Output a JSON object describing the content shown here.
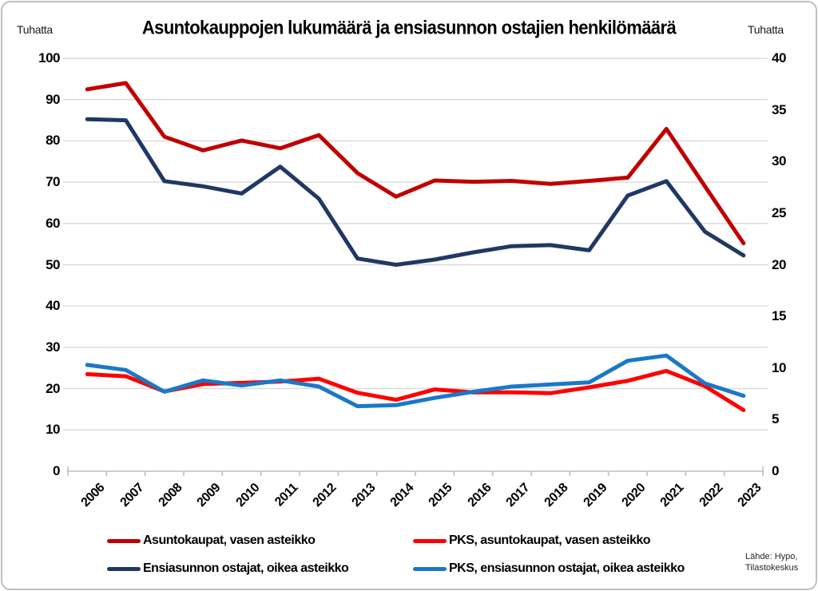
{
  "chart_data": {
    "type": "line",
    "title": "Asuntokauppojen lukumäärä ja ensiasunnon ostajien henkilömäärä",
    "categories": [
      "2006",
      "2007",
      "2008",
      "2009",
      "2010",
      "2011",
      "2012",
      "2013",
      "2014",
      "2015",
      "2016",
      "2017",
      "2018",
      "2019",
      "2020",
      "2021",
      "2022",
      "2023"
    ],
    "left_axis": {
      "label": "Tuhatta",
      "min": 0,
      "max": 100,
      "ticks": [
        100,
        90,
        80,
        70,
        60,
        50,
        40,
        30,
        20,
        10,
        0
      ]
    },
    "right_axis": {
      "label": "Tuhatta",
      "min": 0,
      "max": 40,
      "ticks": [
        40,
        35,
        30,
        25,
        20,
        15,
        10,
        5,
        0
      ]
    },
    "grid": "horizontal",
    "legend_position": "bottom",
    "series": [
      {
        "name": "Asuntokaupat, vasen asteikko",
        "axis": "left",
        "color": "#C00000",
        "values": [
          92.5,
          94.0,
          81.0,
          77.7,
          80.1,
          78.2,
          81.4,
          72.2,
          66.5,
          70.4,
          70.1,
          70.3,
          69.6,
          70.3,
          71.1,
          82.9,
          69.0,
          55.2
        ]
      },
      {
        "name": "PKS, asuntokaupat, vasen asteikko",
        "axis": "left",
        "color": "#FF0000",
        "values": [
          23.5,
          23.0,
          19.3,
          21.1,
          21.4,
          21.7,
          22.4,
          19.0,
          17.3,
          19.8,
          19.1,
          19.1,
          18.9,
          20.3,
          21.9,
          24.3,
          20.6,
          14.8
        ]
      },
      {
        "name": "Ensiasunnon ostajat, oikea asteikko",
        "axis": "right",
        "color": "#1F3864",
        "values": [
          34.1,
          34.0,
          28.1,
          27.6,
          26.9,
          29.5,
          26.4,
          20.6,
          20.0,
          20.5,
          21.2,
          21.8,
          21.9,
          21.4,
          26.7,
          28.1,
          23.2,
          20.9
        ]
      },
      {
        "name": "PKS, ensiasunnon ostajat, oikea asteikko",
        "axis": "right",
        "color": "#1B78C6",
        "values": [
          10.3,
          9.8,
          7.7,
          8.8,
          8.3,
          8.8,
          8.2,
          6.3,
          6.4,
          7.1,
          7.7,
          8.2,
          8.4,
          8.6,
          10.7,
          11.2,
          8.5,
          7.3
        ]
      }
    ],
    "source_lines": [
      "Lähde: Hypo,",
      "Tilastokeskus"
    ],
    "colors": {
      "gridline": "#D9D9D9",
      "axis": "#BFBFBF",
      "text": "#000000"
    }
  }
}
